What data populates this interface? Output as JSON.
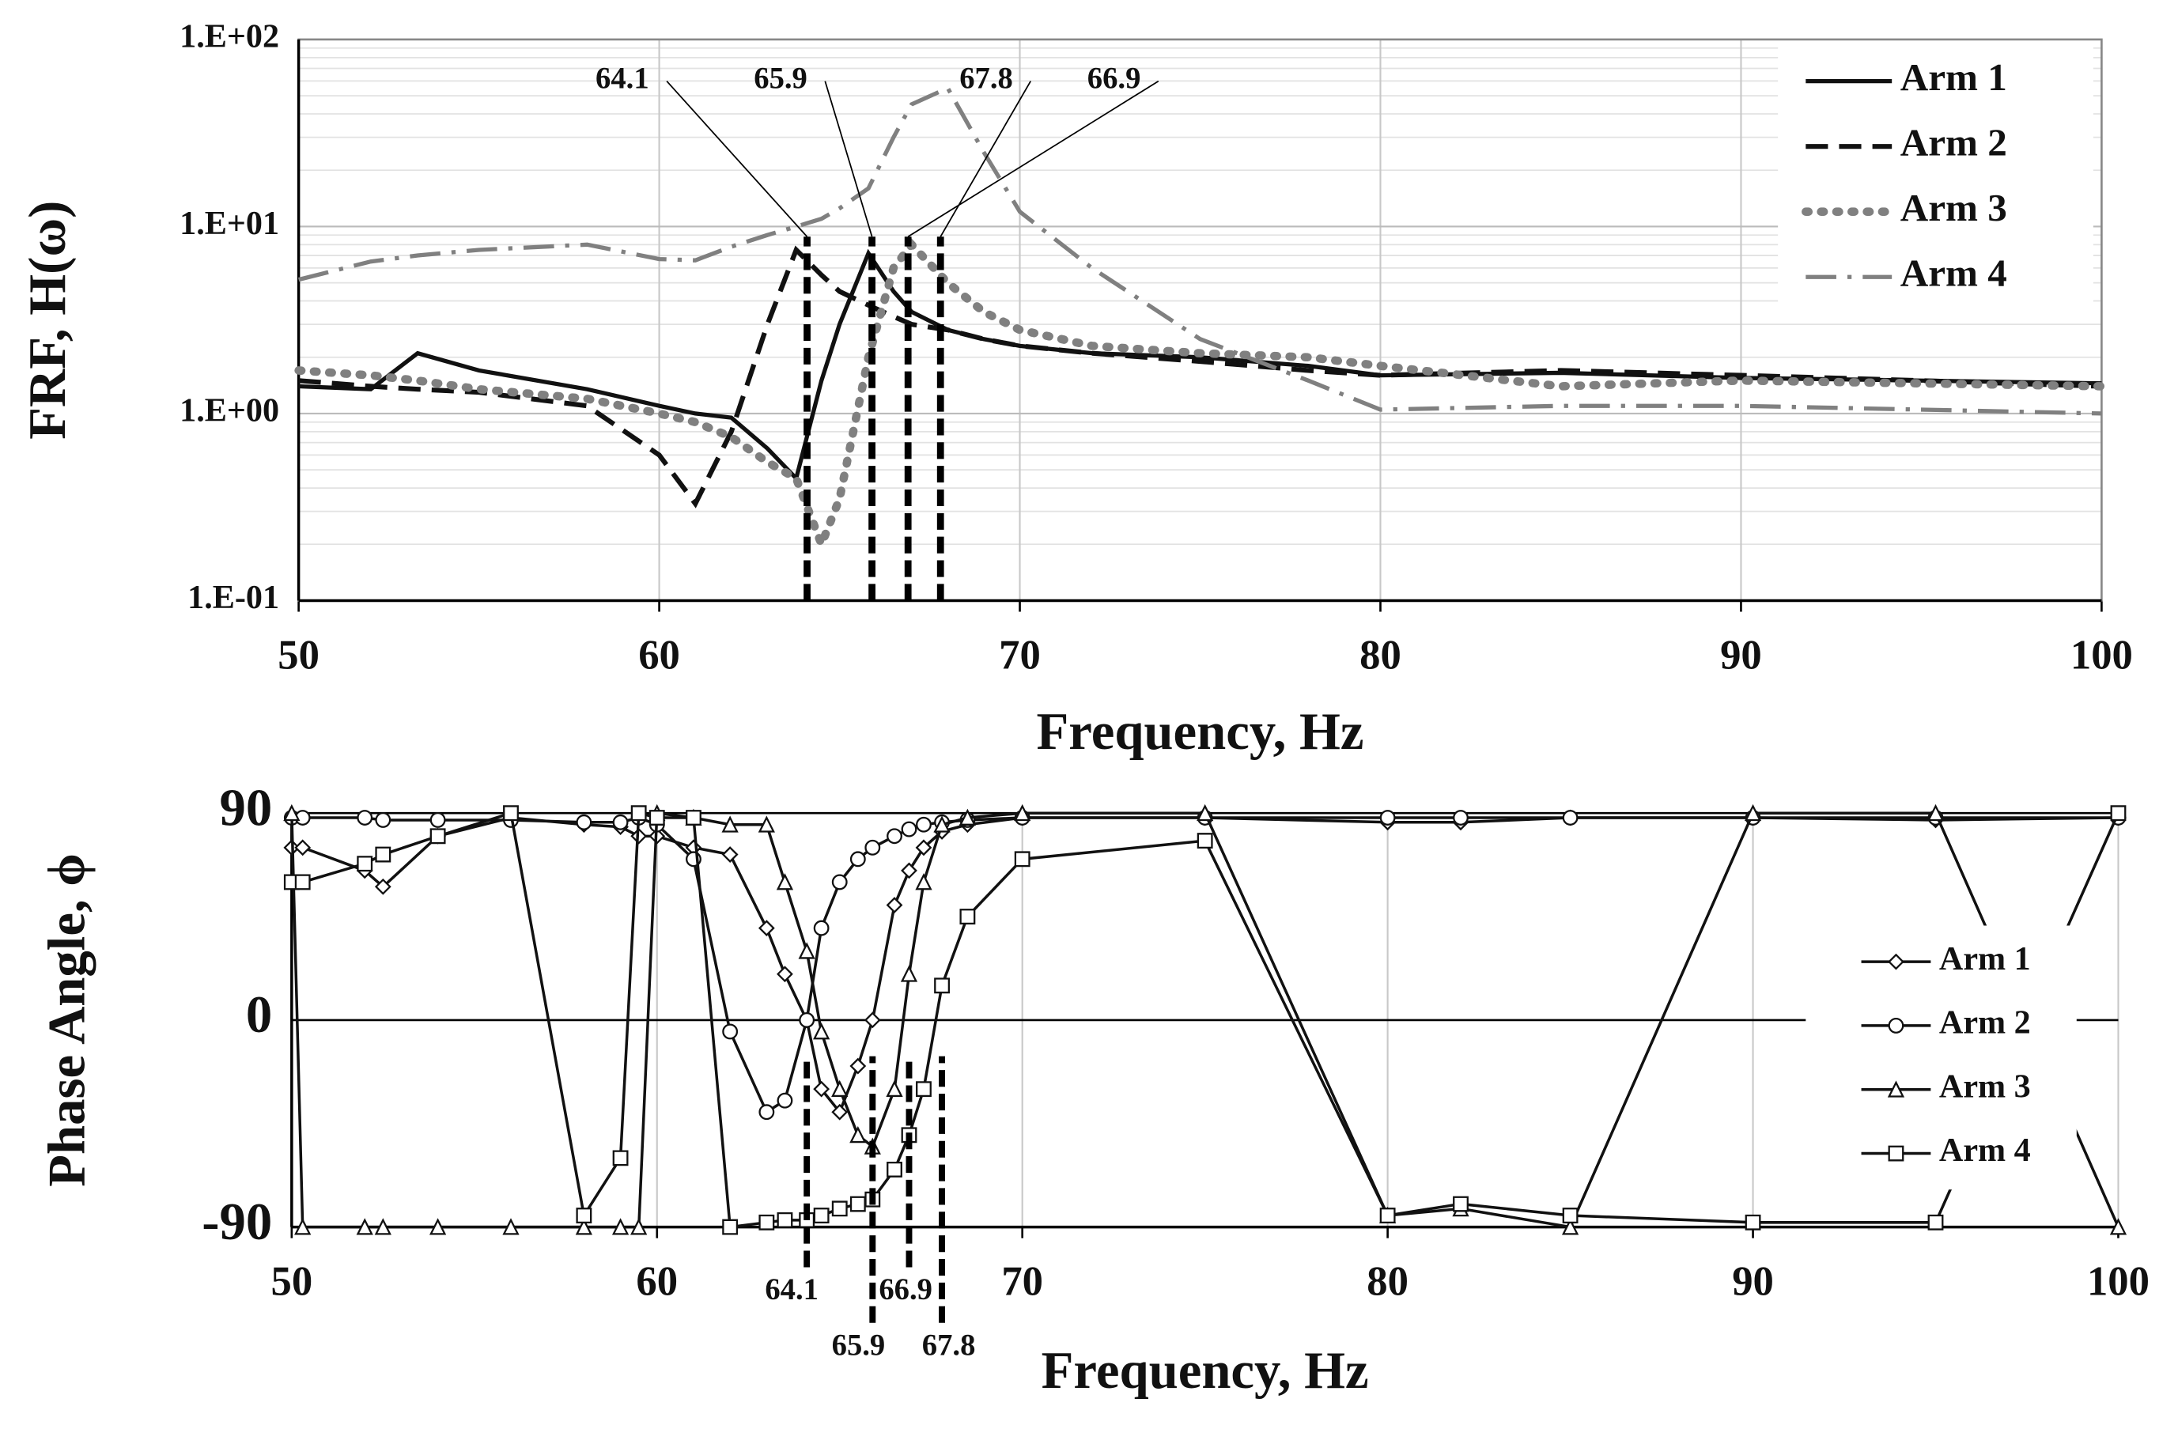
{
  "chart_data": [
    {
      "type": "line",
      "y_label": "FRF, H(ω)",
      "x_label": "Frequency, Hz",
      "log_y": true,
      "grid": true,
      "legend": "upper right",
      "xlim": [
        50,
        100
      ],
      "xticks": [
        50,
        60,
        70,
        80,
        90,
        100
      ],
      "ylim": [
        0.1,
        100
      ],
      "yticks": [
        {
          "value": 0.1,
          "label": "1.E-01"
        },
        {
          "value": 1,
          "label": "1.E+00"
        },
        {
          "value": 10,
          "label": "1.E+01"
        },
        {
          "value": 100,
          "label": "1.E+02"
        }
      ],
      "markers": [
        64.1,
        65.9,
        67.8,
        66.9
      ],
      "x": [
        50,
        52,
        53.3,
        55,
        58,
        60,
        61,
        62,
        63,
        63.8,
        64.5,
        65,
        65.8,
        66.5,
        67,
        68,
        69,
        70,
        72,
        75,
        78,
        80,
        85,
        90,
        95,
        100
      ],
      "series": [
        {
          "name": "Arm 1",
          "color": "#111111",
          "dash": "solid",
          "values": [
            1.4,
            1.35,
            2.1,
            1.7,
            1.35,
            1.1,
            1.0,
            0.95,
            0.65,
            0.45,
            1.5,
            3,
            7.2,
            4.5,
            3.5,
            2.8,
            2.5,
            2.3,
            2.1,
            2.0,
            1.8,
            1.6,
            1.65,
            1.55,
            1.5,
            1.45
          ]
        },
        {
          "name": "Arm 2",
          "color": "#111111",
          "dash": "dashed",
          "values": [
            1.5,
            1.4,
            1.35,
            1.3,
            1.1,
            0.6,
            0.33,
            0.8,
            3,
            7.5,
            5.5,
            4.5,
            3.8,
            3.3,
            3.0,
            2.8,
            2.5,
            2.3,
            2.1,
            1.9,
            1.7,
            1.6,
            1.7,
            1.6,
            1.5,
            1.4
          ]
        },
        {
          "name": "Arm 3",
          "color": "#808080",
          "dash": "dotted",
          "values": [
            1.7,
            1.6,
            1.5,
            1.35,
            1.2,
            1.0,
            0.9,
            0.75,
            0.55,
            0.45,
            0.2,
            0.35,
            2,
            6,
            8,
            5,
            3.5,
            2.8,
            2.3,
            2.1,
            2.0,
            1.8,
            1.4,
            1.5,
            1.45,
            1.4
          ]
        },
        {
          "name": "Arm 4",
          "color": "#808080",
          "dash": "dashdot",
          "values": [
            5.2,
            6.5,
            7,
            7.5,
            8,
            6.7,
            6.6,
            7.8,
            9,
            10,
            11,
            12.5,
            16,
            30,
            45,
            55,
            25,
            12,
            6,
            2.5,
            1.5,
            1.05,
            1.1,
            1.1,
            1.05,
            1.0
          ]
        }
      ]
    },
    {
      "type": "line",
      "y_label": "Phase Angle, ϕ",
      "x_label": "Frequency, Hz",
      "log_y": false,
      "grid": true,
      "legend": "lower right",
      "xlim": [
        50,
        100
      ],
      "xticks": [
        50,
        60,
        70,
        80,
        90,
        100
      ],
      "ylim": [
        -90,
        90
      ],
      "yticks": [
        -90,
        0,
        90
      ],
      "markers": [
        64.1,
        65.9,
        66.9,
        67.8
      ],
      "x": [
        50,
        50.3,
        52,
        52.5,
        54,
        56,
        58,
        59,
        59.5,
        60,
        61,
        62,
        63,
        63.5,
        64.1,
        64.5,
        65,
        65.5,
        65.9,
        66.5,
        66.9,
        67.3,
        67.8,
        68.5,
        70,
        75,
        80,
        82,
        85,
        90,
        95,
        100
      ],
      "series": [
        {
          "name": "Arm 1",
          "color": "#111111",
          "marker": "diamond",
          "values": [
            75,
            75,
            65,
            58,
            80,
            88,
            85,
            84,
            80,
            80,
            75,
            72,
            40,
            20,
            0,
            -30,
            -40,
            -20,
            0,
            50,
            65,
            75,
            82,
            85,
            88,
            88,
            86,
            86,
            88,
            88,
            87,
            88
          ]
        },
        {
          "name": "Arm 2",
          "color": "#111111",
          "marker": "circle",
          "values": [
            88,
            88,
            88,
            87,
            87,
            87,
            86,
            86,
            88,
            85,
            70,
            -5,
            -40,
            -35,
            0,
            40,
            60,
            70,
            75,
            80,
            83,
            85,
            86,
            87,
            88,
            88,
            88,
            88,
            88,
            88,
            88,
            88
          ]
        },
        {
          "name": "Arm 3",
          "color": "#111111",
          "marker": "triangle",
          "values": [
            90,
            -90,
            -90,
            -90,
            -90,
            -90,
            -90,
            -90,
            -90,
            90,
            88,
            85,
            85,
            60,
            30,
            -5,
            -30,
            -50,
            -55,
            -30,
            20,
            60,
            85,
            88,
            90,
            90,
            -85,
            -82,
            -90,
            90,
            90,
            -90
          ]
        },
        {
          "name": "Arm 4",
          "color": "#111111",
          "marker": "square",
          "values": [
            60,
            60,
            68,
            72,
            80,
            90,
            -85,
            -60,
            90,
            88,
            88,
            -90,
            -88,
            -87,
            -87,
            -85,
            -82,
            -80,
            -78,
            -65,
            -50,
            -30,
            15,
            45,
            70,
            78,
            -85,
            -80,
            -85,
            -88,
            -88,
            90
          ]
        }
      ]
    }
  ]
}
